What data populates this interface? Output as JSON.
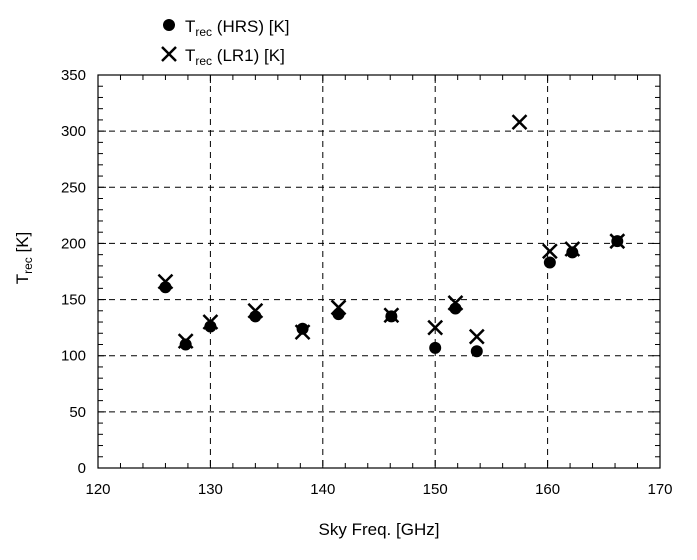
{
  "chart_data": {
    "type": "scatter",
    "xlabel": "Sky Freq. [GHz]",
    "ylabel": {
      "base": "T",
      "sub": "rec",
      "rest": " [K]"
    },
    "xlim": [
      120,
      170
    ],
    "ylim": [
      0,
      350
    ],
    "x_ticks": [
      120,
      130,
      140,
      150,
      160,
      170
    ],
    "y_ticks": [
      0,
      50,
      100,
      150,
      200,
      250,
      300,
      350
    ],
    "grid": "dashed",
    "legend_position": "top-left",
    "series": [
      {
        "name": {
          "base": "T",
          "sub": "rec",
          "rest": " (HRS) [K]"
        },
        "marker": "filled-circle",
        "points": [
          {
            "x": 126.0,
            "y": 161
          },
          {
            "x": 127.8,
            "y": 110
          },
          {
            "x": 130.0,
            "y": 126
          },
          {
            "x": 134.0,
            "y": 135
          },
          {
            "x": 138.2,
            "y": 124
          },
          {
            "x": 141.4,
            "y": 137
          },
          {
            "x": 146.1,
            "y": 135
          },
          {
            "x": 150.0,
            "y": 107
          },
          {
            "x": 151.8,
            "y": 142
          },
          {
            "x": 153.7,
            "y": 104
          },
          {
            "x": 160.2,
            "y": 183
          },
          {
            "x": 162.2,
            "y": 192
          },
          {
            "x": 166.2,
            "y": 202
          }
        ]
      },
      {
        "name": {
          "base": "T",
          "sub": "rec",
          "rest": "  (LR1) [K]"
        },
        "marker": "x-cross",
        "points": [
          {
            "x": 126.0,
            "y": 166
          },
          {
            "x": 127.8,
            "y": 113
          },
          {
            "x": 130.0,
            "y": 130
          },
          {
            "x": 134.0,
            "y": 140
          },
          {
            "x": 138.2,
            "y": 121
          },
          {
            "x": 141.4,
            "y": 143
          },
          {
            "x": 146.1,
            "y": 136
          },
          {
            "x": 150.0,
            "y": 125
          },
          {
            "x": 151.8,
            "y": 147
          },
          {
            "x": 153.7,
            "y": 117
          },
          {
            "x": 157.5,
            "y": 308
          },
          {
            "x": 160.2,
            "y": 193
          },
          {
            "x": 162.2,
            "y": 195
          },
          {
            "x": 166.2,
            "y": 202
          }
        ]
      }
    ]
  }
}
